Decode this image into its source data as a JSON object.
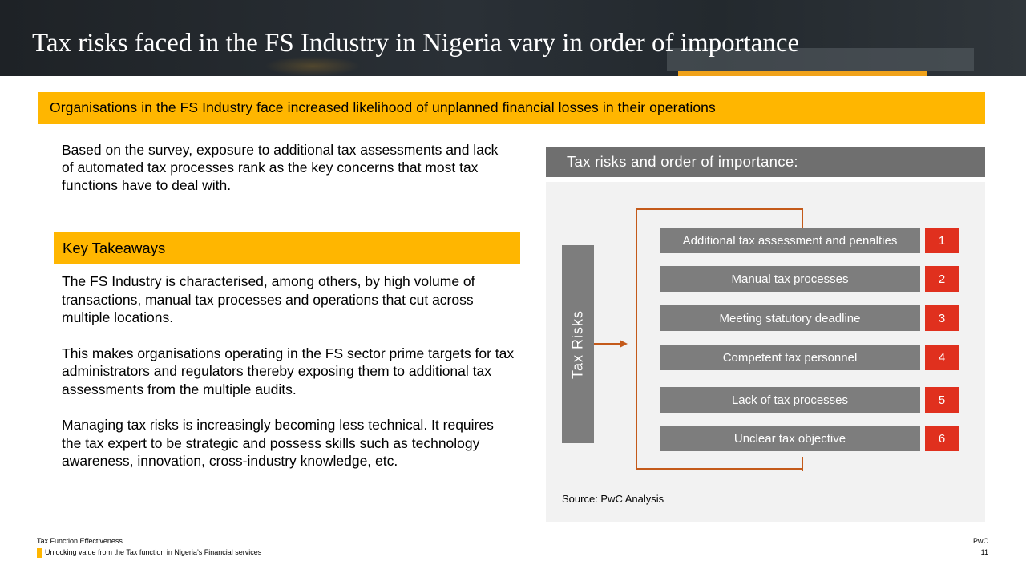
{
  "header": {
    "title": "Tax risks faced in the FS Industry in Nigeria vary in order of importance"
  },
  "banner": {
    "text": "Organisations in the FS Industry face increased likelihood of unplanned financial losses in their operations"
  },
  "intro": {
    "text": "Based on the survey, exposure to additional tax assessments and lack of automated tax processes rank as the key concerns that most tax functions have to deal with."
  },
  "takeaways": {
    "heading": "Key Takeaways",
    "paragraphs": [
      "The FS Industry is characterised, among others, by high volume of transactions, manual tax processes and  operations that cut across multiple locations.",
      "This makes organisations operating in the FS sector prime targets for tax administrators and regulators thereby exposing them to additional tax assessments from the multiple audits.",
      "Managing tax risks is increasingly becoming less technical. It requires the tax expert to be strategic and possess skills such as technology awareness, innovation, cross-industry knowledge, etc."
    ]
  },
  "panel": {
    "heading": "Tax risks and order of importance:",
    "group_label": "Tax Risks",
    "risks": [
      {
        "label": "Additional tax assessment and penalties",
        "rank": "1"
      },
      {
        "label": "Manual tax processes",
        "rank": "2"
      },
      {
        "label": "Meeting statutory deadline",
        "rank": "3"
      },
      {
        "label": "Competent tax personnel",
        "rank": "4"
      },
      {
        "label": "Lack of tax processes",
        "rank": "5"
      },
      {
        "label": "Unclear tax objective",
        "rank": "6"
      }
    ],
    "source": "Source: PwC Analysis"
  },
  "footer": {
    "line1": "Tax Function Effectiveness",
    "line2": "Unlocking value from the Tax function in Nigeria’s Financial services",
    "brand": "PwC",
    "page_number": "11"
  },
  "colors": {
    "accent_yellow": "#ffb600",
    "rank_red": "#e0301e",
    "box_grey": "#7d7d7d",
    "connector_orange": "#c45a1a"
  }
}
